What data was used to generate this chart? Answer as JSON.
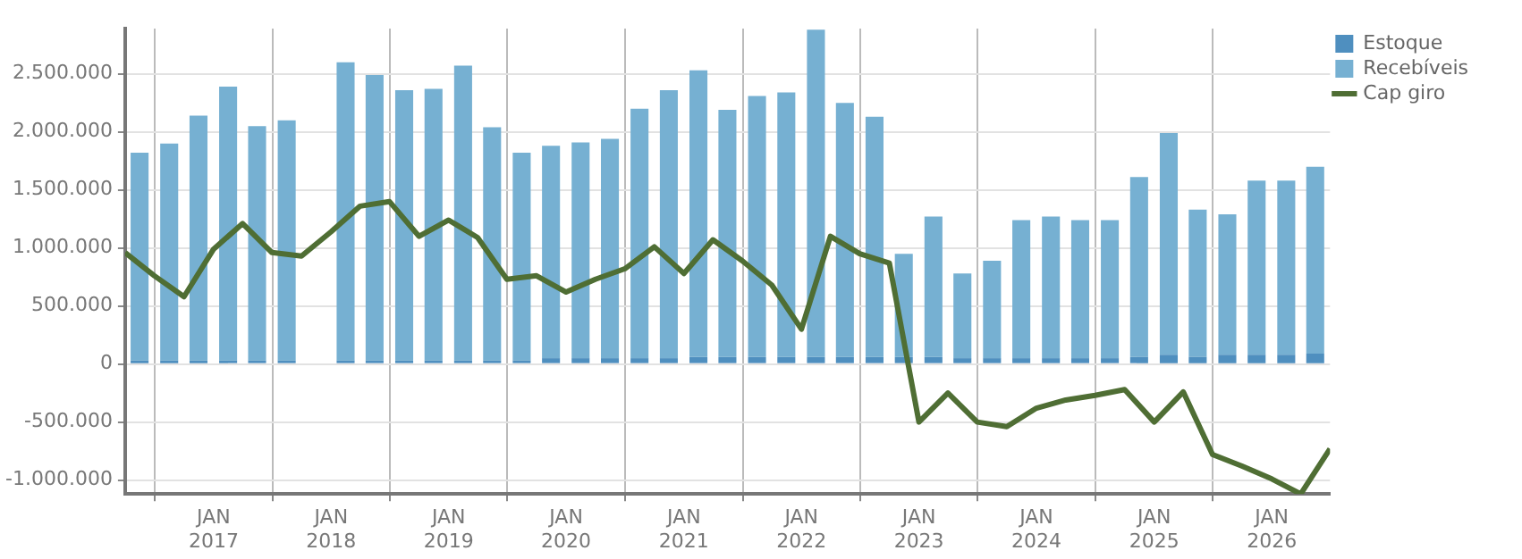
{
  "chart_data": {
    "type": "bar",
    "stacked": true,
    "x": [
      "2016-05-16",
      "2016-08-16",
      "2016-11-15",
      "2017-02-15",
      "2017-05-16",
      "2017-08-16",
      "2017-11-15",
      "2018-02-15",
      "2018-05-16",
      "2018-08-16",
      "2018-11-15",
      "2019-02-15",
      "2019-05-16",
      "2019-08-16",
      "2019-11-15",
      "2020-02-15",
      "2020-05-16",
      "2020-08-16",
      "2020-11-15",
      "2021-02-15",
      "2021-05-16",
      "2021-08-16",
      "2021-11-15",
      "2022-02-15",
      "2022-05-16",
      "2022-08-16",
      "2022-11-15",
      "2023-02-15",
      "2023-05-16",
      "2023-08-16",
      "2023-11-15",
      "2024-02-15",
      "2024-05-16",
      "2024-08-16",
      "2024-11-15",
      "2025-02-15",
      "2025-05-16",
      "2025-08-16",
      "2025-11-15",
      "2026-02-15",
      "2026-05-16"
    ],
    "series": [
      {
        "name": "Estoque",
        "color": "#4f8fbf",
        "values": [
          30000,
          30000,
          30000,
          30000,
          30000,
          30000,
          null,
          30000,
          30000,
          30000,
          30000,
          30000,
          30000,
          30000,
          50000,
          50000,
          50000,
          50000,
          50000,
          60000,
          60000,
          60000,
          60000,
          60000,
          60000,
          60000,
          60000,
          60000,
          50000,
          50000,
          50000,
          50000,
          50000,
          50000,
          60000,
          80000,
          60000,
          80000,
          80000,
          80000,
          90000
        ]
      },
      {
        "name": "Recebíveis",
        "color": "#76b0d2",
        "values": [
          1790000,
          1870000,
          2110000,
          2360000,
          2020000,
          2070000,
          null,
          2570000,
          2460000,
          2330000,
          2340000,
          2540000,
          2010000,
          1790000,
          1830000,
          1860000,
          1890000,
          2150000,
          2310000,
          2470000,
          2130000,
          2250000,
          2280000,
          2820000,
          2190000,
          2070000,
          890000,
          1210000,
          730000,
          840000,
          1190000,
          1220000,
          1190000,
          1190000,
          1550000,
          1910000,
          1270000,
          1210000,
          1500000,
          1500000,
          1610000
        ]
      },
      {
        "name": "Cap giro",
        "type": "line",
        "color": "#4f6e34",
        "x": [
          "2016-04-01",
          "2016-07-01",
          "2016-10-01",
          "2017-01-01",
          "2017-04-01",
          "2017-07-01",
          "2017-10-01",
          "2018-01-01",
          "2018-04-01",
          "2018-07-01",
          "2018-10-01",
          "2019-01-01",
          "2019-04-01",
          "2019-07-01",
          "2019-10-01",
          "2020-01-01",
          "2020-04-01",
          "2020-07-01",
          "2020-10-01",
          "2021-01-01",
          "2021-04-01",
          "2021-07-01",
          "2021-10-01",
          "2022-01-01",
          "2022-04-01",
          "2022-07-01",
          "2022-10-01",
          "2023-01-01",
          "2023-04-01",
          "2023-07-01",
          "2023-10-01",
          "2024-01-01",
          "2024-04-01",
          "2024-07-01",
          "2024-10-01",
          "2025-01-01",
          "2025-04-01",
          "2025-07-01",
          "2025-10-01",
          "2026-01-01",
          "2026-04-01",
          "2026-07-01"
        ],
        "values": [
          960000,
          760000,
          580000,
          990000,
          1210000,
          960000,
          930000,
          1140000,
          1360000,
          1400000,
          1100000,
          1240000,
          1090000,
          730000,
          760000,
          620000,
          730000,
          820000,
          1010000,
          780000,
          1070000,
          890000,
          680000,
          300000,
          1100000,
          950000,
          870000,
          -500000,
          -250000,
          -500000,
          -540000,
          -380000,
          -310000,
          -270000,
          -220000,
          -500000,
          -240000,
          -780000,
          -880000,
          -990000,
          -1120000,
          -730000
        ]
      }
    ],
    "xlim": [
      "2016-04-01",
      "2026-07-01"
    ],
    "xticks": [
      {
        "value": "2017-01-01",
        "label": "JAN 2017"
      },
      {
        "value": "2018-01-01",
        "label": "JAN 2018"
      },
      {
        "value": "2019-01-01",
        "label": "JAN 2019"
      },
      {
        "value": "2020-01-01",
        "label": "JAN 2020"
      },
      {
        "value": "2021-01-01",
        "label": "JAN 2021"
      },
      {
        "value": "2022-01-01",
        "label": "JAN 2022"
      },
      {
        "value": "2023-01-01",
        "label": "JAN 2023"
      },
      {
        "value": "2024-01-01",
        "label": "JAN 2024"
      },
      {
        "value": "2025-01-01",
        "label": "JAN 2025"
      },
      {
        "value": "2026-01-01",
        "label": "JAN 2026"
      }
    ],
    "ylim": [
      -1120000,
      2890000
    ],
    "yticks": [
      {
        "value": -1000000,
        "label": "-1.000.000"
      },
      {
        "value": -500000,
        "label": "-500.000"
      },
      0,
      {
        "value": 500000,
        "label": "500.000"
      },
      {
        "value": 1000000,
        "label": "1.000.000"
      },
      {
        "value": 1500000,
        "label": "1.500.000"
      },
      {
        "value": 2000000,
        "label": "2.000.000"
      },
      {
        "value": 2500000,
        "label": "2.500.000"
      }
    ],
    "grid": true,
    "legend": "top right",
    "marker": "none",
    "line_style": "solid"
  }
}
